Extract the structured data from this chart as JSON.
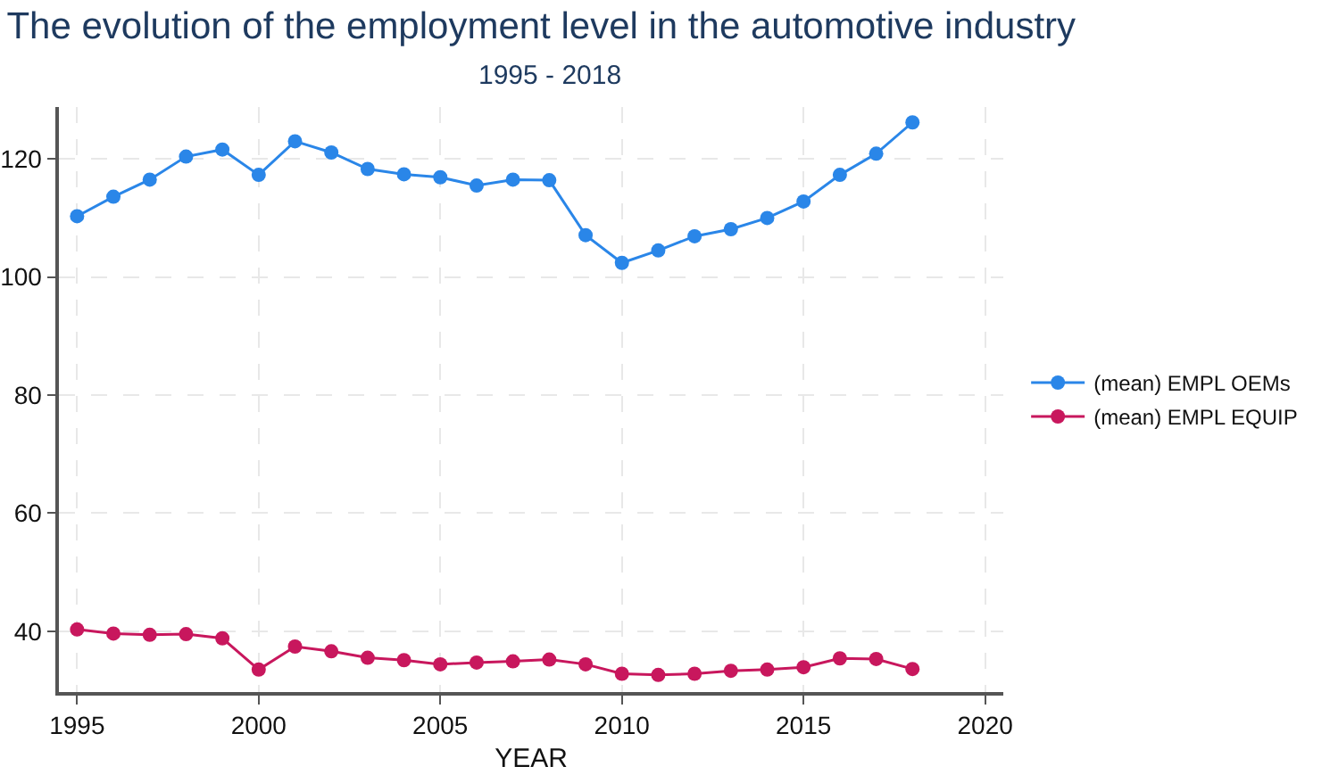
{
  "chart_data": {
    "type": "line",
    "title": "The evolution of the employment level in the automotive industry",
    "subtitle": "1995 - 2018",
    "xlabel": "YEAR",
    "x": [
      1995,
      1996,
      1997,
      1998,
      1999,
      2000,
      2001,
      2002,
      2003,
      2004,
      2005,
      2006,
      2007,
      2008,
      2009,
      2010,
      2011,
      2012,
      2013,
      2014,
      2015,
      2016,
      2017,
      2018
    ],
    "series": [
      {
        "name": "(mean) EMPL OEMs",
        "color": "#2a86e8",
        "values": [
          110.3,
          113.6,
          116.5,
          120.4,
          121.6,
          117.3,
          123.0,
          121.1,
          118.3,
          117.4,
          116.9,
          115.5,
          116.5,
          116.4,
          107.1,
          102.4,
          104.5,
          106.9,
          108.1,
          110.0,
          112.8,
          117.3,
          120.9,
          126.2
        ]
      },
      {
        "name": "(mean) EMPL EQUIP",
        "color": "#c8175d",
        "values": [
          40.3,
          39.6,
          39.4,
          39.5,
          38.8,
          33.5,
          37.4,
          36.6,
          35.5,
          35.1,
          34.4,
          34.7,
          34.9,
          35.2,
          34.4,
          32.8,
          32.6,
          32.8,
          33.3,
          33.5,
          33.9,
          35.4,
          35.3,
          33.6
        ]
      }
    ],
    "xlim": [
      1994.5,
      2020.5
    ],
    "xticks": [
      1995,
      2000,
      2005,
      2010,
      2015,
      2020
    ],
    "ylim": [
      29.7,
      128.8
    ],
    "yticks": [
      40,
      60,
      80,
      100,
      120
    ],
    "grid": true,
    "legend": "right",
    "marker": "circle",
    "line_style": "solid"
  }
}
